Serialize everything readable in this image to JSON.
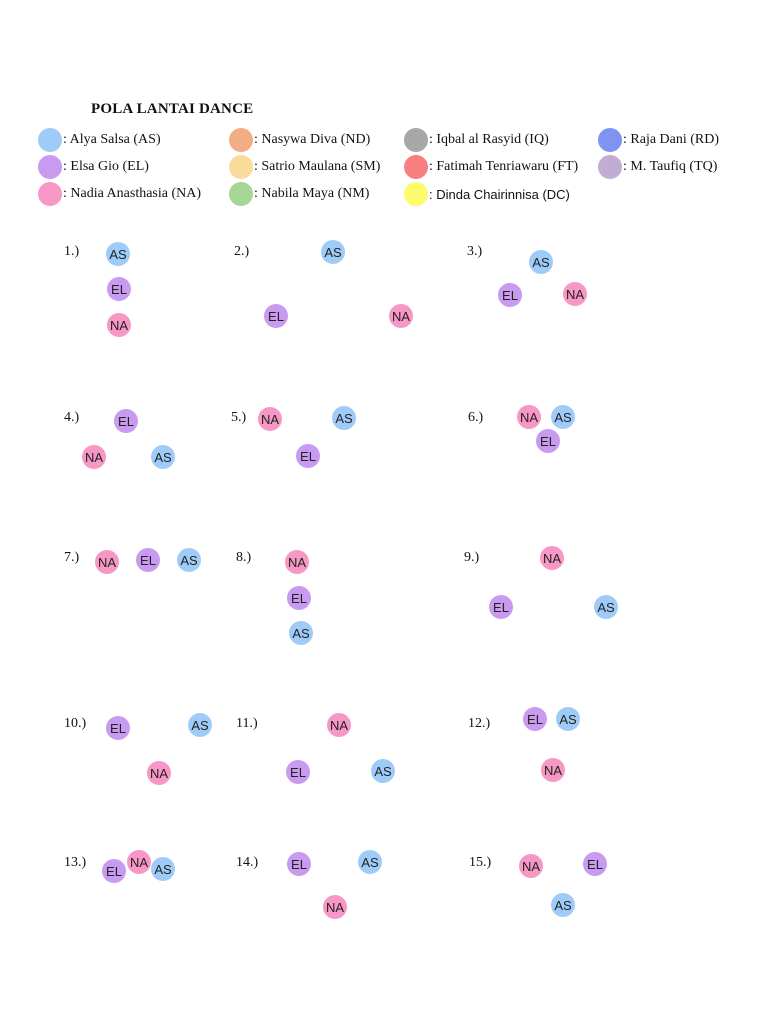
{
  "title": "POLA LANTAI DANCE",
  "legend": [
    {
      "label": ": Alya Salsa (AS)",
      "color": "#9ecbf7"
    },
    {
      "label": ": Nasywa Diva (ND)",
      "color": "#f2ad84"
    },
    {
      "label": ": Iqbal al Rasyid (IQ)",
      "color": "#a9a6a6"
    },
    {
      "label": ": Raja Dani (RD)",
      "color": "#7f93f3"
    },
    {
      "label": ": Elsa Gio (EL)",
      "color": "#c89af0"
    },
    {
      "label": ": Satrio Maulana (SM)",
      "color": "#fbdb9c"
    },
    {
      "label": ": Fatimah Tenriawaru (FT)",
      "color": "#f67f7f"
    },
    {
      "label": ": M. Taufiq (TQ)",
      "color": "#c1add3"
    },
    {
      "label": ": Nadia Anasthasia (NA)",
      "color": "#f797c6"
    },
    {
      "label": ": Nabila Maya (NM)",
      "color": "#a7d595"
    },
    {
      "label": ": Dinda  Chairinnisa  (DC)",
      "color": "#fdfb6c"
    }
  ],
  "dancer_colors": {
    "AS": "#9ecbf7",
    "EL": "#c89af0",
    "NA": "#f797c6"
  },
  "formations": [
    {
      "number": "1.)",
      "dancers": [
        "AS",
        "EL",
        "NA"
      ]
    },
    {
      "number": "2.)",
      "dancers": [
        "AS",
        "EL",
        "NA"
      ]
    },
    {
      "number": "3.)",
      "dancers": [
        "AS",
        "EL",
        "NA"
      ]
    },
    {
      "number": "4.)",
      "dancers": [
        "EL",
        "NA",
        "AS"
      ]
    },
    {
      "number": "5.)",
      "dancers": [
        "NA",
        "AS",
        "EL"
      ]
    },
    {
      "number": "6.)",
      "dancers": [
        "NA",
        "AS",
        "EL"
      ]
    },
    {
      "number": "7.)",
      "dancers": [
        "NA",
        "EL",
        "AS"
      ]
    },
    {
      "number": "8.)",
      "dancers": [
        "NA",
        "EL",
        "AS"
      ]
    },
    {
      "number": "9.)",
      "dancers": [
        "NA",
        "EL",
        "AS"
      ]
    },
    {
      "number": "10.)",
      "dancers": [
        "EL",
        "AS",
        "NA"
      ]
    },
    {
      "number": "11.)",
      "dancers": [
        "NA",
        "EL",
        "AS"
      ]
    },
    {
      "number": "12.)",
      "dancers": [
        "EL",
        "AS",
        "NA"
      ]
    },
    {
      "number": "13.)",
      "dancers": [
        "NA",
        "EL",
        "AS"
      ]
    },
    {
      "number": "14.)",
      "dancers": [
        "EL",
        "AS",
        "NA"
      ]
    },
    {
      "number": "15.)",
      "dancers": [
        "NA",
        "EL",
        "AS"
      ]
    }
  ]
}
